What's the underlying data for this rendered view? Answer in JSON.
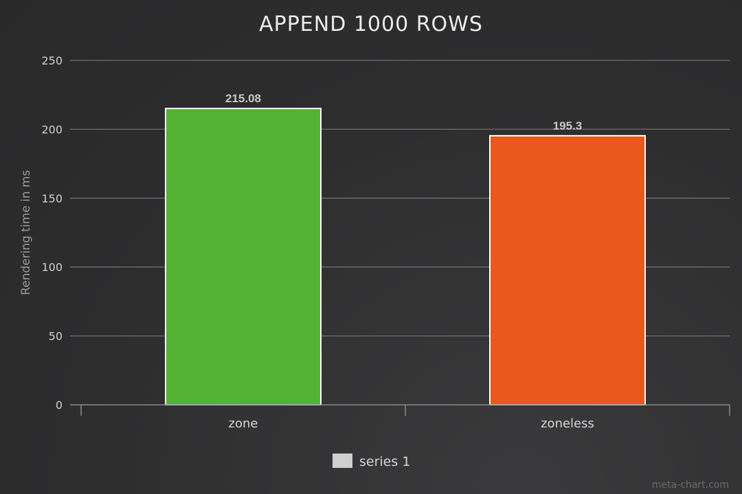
{
  "chart_data": {
    "type": "bar",
    "title": "APPEND 1000 ROWS",
    "xlabel": "",
    "ylabel": "Rendering time in ms",
    "ylim": [
      0,
      250
    ],
    "yticks": [
      0,
      50,
      100,
      150,
      200,
      250
    ],
    "categories": [
      "zone",
      "zoneless"
    ],
    "series": [
      {
        "name": "series 1",
        "values": [
          215.08,
          195.3
        ],
        "colors": [
          "#52b234",
          "#ea581d"
        ],
        "data_labels": [
          "215.08",
          "195.3"
        ]
      }
    ],
    "grid": true,
    "legend": "bottom-center"
  },
  "colors": {
    "gridline": "#6e6e6e",
    "axis": "#8a8a8a",
    "bar_stroke": "#ffffff",
    "legend_swatch": "#cfcfcf"
  },
  "credit": "meta-chart.com"
}
